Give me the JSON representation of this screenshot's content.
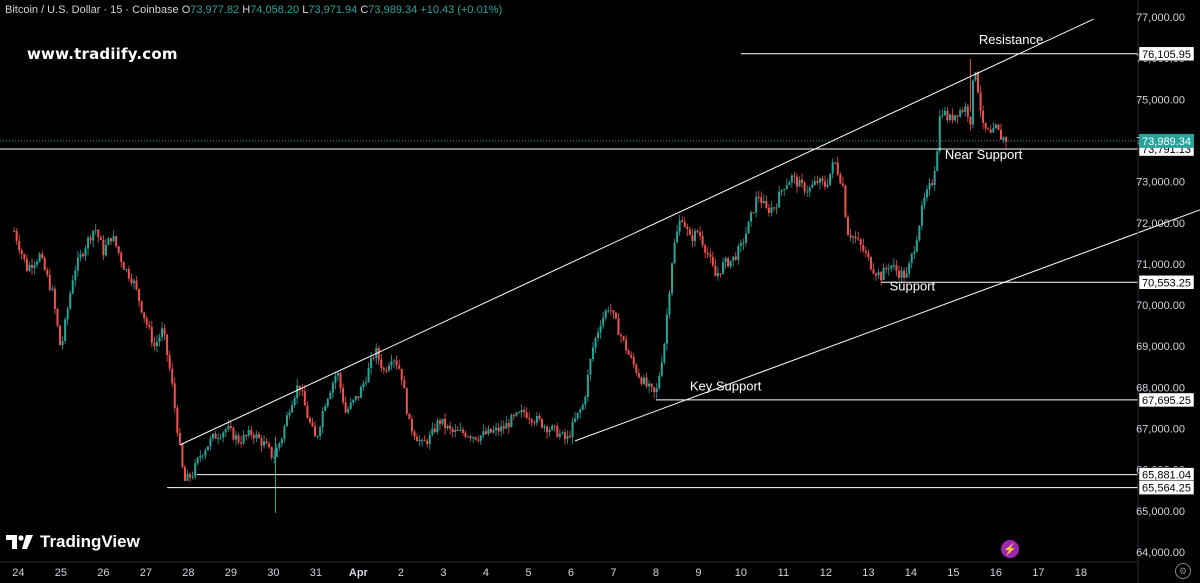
{
  "header": {
    "symbol": "Bitcoin / U.S. Dollar · 15 · Coinbase",
    "o_label": "O",
    "o_value": "73,977.82",
    "h_label": "H",
    "h_value": "74,058.20",
    "l_label": "L",
    "l_value": "73,971.94",
    "c_label": "C",
    "c_value": "73,989.34",
    "change": "+10.43 (+0.01%)"
  },
  "watermark": "www.tradiify.com",
  "brand": "TradingView",
  "colors": {
    "up": "#26a69a",
    "down": "#ef5350",
    "price_tag": "#26a69a",
    "line": "#ffffff",
    "background": "#000000"
  },
  "chart_data": {
    "type": "candlestick",
    "title": "Bitcoin / U.S. Dollar · 15 · Coinbase",
    "xlabel": "",
    "ylabel": "",
    "ylim": [
      64000,
      77000
    ],
    "y_ticks": [
      {
        "value": 77000,
        "label": "77,000.00"
      },
      {
        "value": 76000,
        "label": "76,000.00"
      },
      {
        "value": 75000,
        "label": "75,000.00"
      },
      {
        "value": 74000,
        "label": "74,000.00"
      },
      {
        "value": 73000,
        "label": "73,000.00"
      },
      {
        "value": 72000,
        "label": "72,000.00"
      },
      {
        "value": 71000,
        "label": "71,000.00"
      },
      {
        "value": 70000,
        "label": "70,000.00"
      },
      {
        "value": 69000,
        "label": "69,000.00"
      },
      {
        "value": 68000,
        "label": "68,000.00"
      },
      {
        "value": 67000,
        "label": "67,000.00"
      },
      {
        "value": 66000,
        "label": "66,000.00"
      },
      {
        "value": 65000,
        "label": "65,000.00"
      },
      {
        "value": 64000,
        "label": "64,000.00"
      }
    ],
    "x_ticks": [
      {
        "day": 24,
        "label": "24"
      },
      {
        "day": 25,
        "label": "25"
      },
      {
        "day": 26,
        "label": "26"
      },
      {
        "day": 27,
        "label": "27"
      },
      {
        "day": 28,
        "label": "28"
      },
      {
        "day": 29,
        "label": "29"
      },
      {
        "day": 30,
        "label": "30"
      },
      {
        "day": 31,
        "label": "31"
      },
      {
        "day": 32,
        "label": "Apr"
      },
      {
        "day": 33,
        "label": "2"
      },
      {
        "day": 34,
        "label": "3"
      },
      {
        "day": 35,
        "label": "4"
      },
      {
        "day": 36,
        "label": "5"
      },
      {
        "day": 37,
        "label": "6"
      },
      {
        "day": 38,
        "label": "7"
      },
      {
        "day": 39,
        "label": "8"
      },
      {
        "day": 40,
        "label": "9"
      },
      {
        "day": 41,
        "label": "10"
      },
      {
        "day": 42,
        "label": "11"
      },
      {
        "day": 43,
        "label": "12"
      },
      {
        "day": 44,
        "label": "13"
      },
      {
        "day": 45,
        "label": "14"
      },
      {
        "day": 46,
        "label": "15"
      },
      {
        "day": 47,
        "label": "16"
      },
      {
        "day": 48,
        "label": "17"
      },
      {
        "day": 49,
        "label": "18"
      }
    ],
    "price_path": [
      [
        23.9,
        71800
      ],
      [
        24.2,
        70900
      ],
      [
        24.5,
        71200
      ],
      [
        24.8,
        70300
      ],
      [
        25.0,
        68900
      ],
      [
        25.3,
        70800
      ],
      [
        25.6,
        71500
      ],
      [
        25.8,
        71900
      ],
      [
        26.0,
        71300
      ],
      [
        26.2,
        71700
      ],
      [
        26.5,
        70900
      ],
      [
        26.7,
        70600
      ],
      [
        27.0,
        69600
      ],
      [
        27.2,
        69000
      ],
      [
        27.4,
        69400
      ],
      [
        27.6,
        68200
      ],
      [
        27.8,
        66500
      ],
      [
        27.9,
        65700
      ],
      [
        28.1,
        65900
      ],
      [
        28.3,
        66400
      ],
      [
        28.6,
        66800
      ],
      [
        28.9,
        67000
      ],
      [
        29.2,
        66700
      ],
      [
        29.5,
        66900
      ],
      [
        29.8,
        66600
      ],
      [
        30.0,
        66300
      ],
      [
        30.2,
        66800
      ],
      [
        30.4,
        67600
      ],
      [
        30.6,
        68100
      ],
      [
        30.8,
        67300
      ],
      [
        31.0,
        66700
      ],
      [
        31.2,
        67600
      ],
      [
        31.5,
        68400
      ],
      [
        31.7,
        67400
      ],
      [
        32.0,
        67800
      ],
      [
        32.2,
        68300
      ],
      [
        32.4,
        68900
      ],
      [
        32.6,
        68400
      ],
      [
        32.8,
        68800
      ],
      [
        33.0,
        68400
      ],
      [
        33.2,
        67100
      ],
      [
        33.5,
        66600
      ],
      [
        33.7,
        66800
      ],
      [
        33.9,
        67200
      ],
      [
        34.2,
        66900
      ],
      [
        34.5,
        66900
      ],
      [
        34.8,
        66800
      ],
      [
        35.1,
        66900
      ],
      [
        35.4,
        67000
      ],
      [
        35.6,
        67200
      ],
      [
        35.9,
        67400
      ],
      [
        36.2,
        67200
      ],
      [
        36.5,
        67000
      ],
      [
        36.7,
        66900
      ],
      [
        36.9,
        66700
      ],
      [
        37.1,
        67200
      ],
      [
        37.3,
        67600
      ],
      [
        37.5,
        68900
      ],
      [
        37.7,
        69600
      ],
      [
        37.9,
        70000
      ],
      [
        38.0,
        69700
      ],
      [
        38.2,
        69200
      ],
      [
        38.4,
        68700
      ],
      [
        38.6,
        68300
      ],
      [
        38.8,
        68000
      ],
      [
        39.0,
        67800
      ],
      [
        39.2,
        69100
      ],
      [
        39.4,
        71300
      ],
      [
        39.6,
        72200
      ],
      [
        39.8,
        71600
      ],
      [
        40.0,
        71800
      ],
      [
        40.2,
        71300
      ],
      [
        40.4,
        70700
      ],
      [
        40.6,
        71000
      ],
      [
        40.8,
        71100
      ],
      [
        41.0,
        71400
      ],
      [
        41.2,
        72000
      ],
      [
        41.4,
        72700
      ],
      [
        41.6,
        72300
      ],
      [
        41.8,
        72400
      ],
      [
        42.0,
        72900
      ],
      [
        42.2,
        73100
      ],
      [
        42.4,
        72900
      ],
      [
        42.6,
        72800
      ],
      [
        42.8,
        73000
      ],
      [
        43.0,
        72900
      ],
      [
        43.2,
        73500
      ],
      [
        43.4,
        72900
      ],
      [
        43.5,
        71800
      ],
      [
        43.7,
        71600
      ],
      [
        43.9,
        71300
      ],
      [
        44.1,
        70900
      ],
      [
        44.3,
        70700
      ],
      [
        44.5,
        71000
      ],
      [
        44.7,
        70800
      ],
      [
        44.9,
        70700
      ],
      [
        45.1,
        71500
      ],
      [
        45.3,
        72500
      ],
      [
        45.5,
        73000
      ],
      [
        45.6,
        73600
      ],
      [
        45.7,
        74800
      ],
      [
        45.9,
        74500
      ],
      [
        46.1,
        74700
      ],
      [
        46.3,
        74800
      ],
      [
        46.4,
        74500
      ],
      [
        46.5,
        75900
      ],
      [
        46.7,
        74300
      ],
      [
        46.9,
        74100
      ],
      [
        47.0,
        74300
      ],
      [
        47.1,
        74100
      ],
      [
        47.3,
        73989
      ]
    ],
    "trendlines": [
      {
        "name": "upper-channel",
        "points": [
          [
            27.8,
            66600
          ],
          [
            49.3,
            76950
          ]
        ]
      },
      {
        "name": "lower-channel",
        "points": [
          [
            37.1,
            66700
          ],
          [
            51.9,
            72350
          ]
        ]
      }
    ],
    "levels": [
      {
        "name": "resistance",
        "value": 76105.95,
        "label": "76,105.95",
        "from_day": 41.0
      },
      {
        "name": "near-support",
        "value": 73791.13,
        "label": "73,791.13",
        "from_day": 23.5
      },
      {
        "name": "support",
        "value": 70553.25,
        "label": "70,553.25",
        "from_day": 44.3
      },
      {
        "name": "key-support",
        "value": 67695.25,
        "label": "67,695.25",
        "from_day": 39.0
      },
      {
        "name": "low-1",
        "value": 65881.04,
        "label": "65,881.04",
        "from_day": 28.2
      },
      {
        "name": "low-2",
        "value": 65564.25,
        "label": "65,564.25",
        "from_day": 27.5
      }
    ],
    "last_price": {
      "value": 73989.34,
      "label": "73,989.34"
    },
    "annotations": [
      {
        "name": "resistance-label",
        "text": "Resistance",
        "day": 46.6,
        "price": 76350
      },
      {
        "name": "near-support-label",
        "text": "Near Support",
        "day": 45.8,
        "price": 73550
      },
      {
        "name": "support-label",
        "text": "Support",
        "day": 44.5,
        "price": 70350
      },
      {
        "name": "key-support-label",
        "text": "Key Support",
        "day": 39.8,
        "price": 67920
      }
    ]
  }
}
